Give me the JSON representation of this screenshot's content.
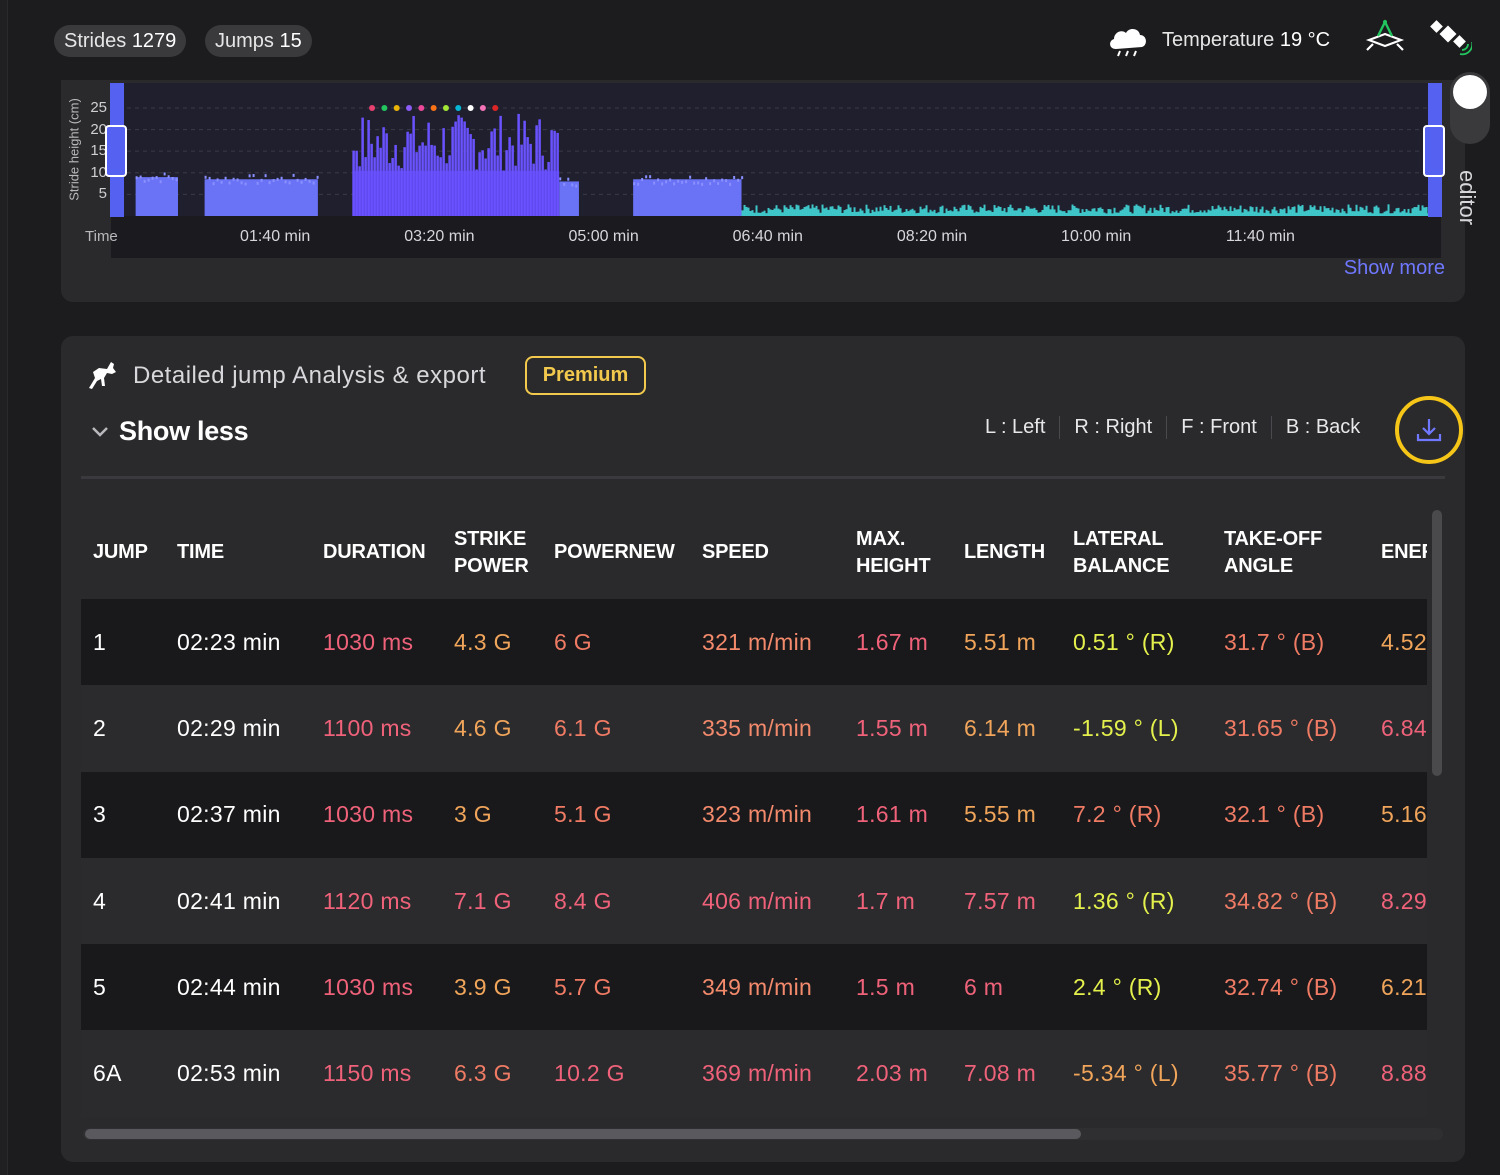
{
  "stats": {
    "strides_label": "Strides",
    "strides_value": "1279",
    "jumps_label": "Jumps",
    "jumps_value": "15",
    "temperature_label": "Temperature",
    "temperature_value": "19 °C"
  },
  "icons": {
    "weather": "cloud-icon",
    "arena": "arena-icon",
    "satellite": "satellite-icon",
    "horse": "horse-jump-icon",
    "chevron": "chevron-down-icon",
    "download": "download-icon"
  },
  "chart": {
    "ylabel": "Stride height (cm)",
    "yticks": [
      "25",
      "20",
      "15",
      "10",
      "5"
    ],
    "time_label": "Time",
    "xticks": [
      "01:40 min",
      "03:20 min",
      "05:00 min",
      "06:40 min",
      "08:20 min",
      "10:00 min",
      "11:40 min"
    ],
    "show_more": "Show more",
    "colors": {
      "stride": "#6a72f5",
      "jump": "#5b3ff0",
      "walk": "#3fc6c9",
      "background": "#1a1a1f"
    },
    "marker_colors": [
      "#e8416f",
      "#22c55e",
      "#eab308",
      "#8b5cf6",
      "#ec4899",
      "#f97316",
      "#a3e635",
      "#06b6d4",
      "#ffffff",
      "#f472b6",
      "#dc2626"
    ]
  },
  "chart_data": {
    "type": "area",
    "title": "",
    "xlabel": "Time",
    "ylabel": "Stride height (cm)",
    "ylim": [
      0,
      28
    ],
    "xlim_min": [
      0,
      13.5
    ],
    "x_tick_labels": [
      "01:40 min",
      "03:20 min",
      "05:00 min",
      "06:40 min",
      "08:20 min",
      "10:00 min",
      "11:40 min"
    ],
    "segments": [
      {
        "name": "stride",
        "x_start_min": 0.25,
        "x_end_min": 0.68,
        "height_cm": 9
      },
      {
        "name": "stride",
        "x_start_min": 0.95,
        "x_end_min": 2.1,
        "height_cm": 8.5
      },
      {
        "name": "jump",
        "x_start_min": 2.45,
        "x_end_min": 4.55,
        "height_cm": 19
      },
      {
        "name": "stride",
        "x_start_min": 4.55,
        "x_end_min": 4.75,
        "height_cm": 8
      },
      {
        "name": "stride",
        "x_start_min": 5.3,
        "x_end_min": 6.4,
        "height_cm": 8.5
      },
      {
        "name": "walk",
        "x_start_min": 6.4,
        "x_end_min": 13.45,
        "height_cm": 1.5
      }
    ],
    "grid": true,
    "legend": "none"
  },
  "editor": {
    "label": "editor"
  },
  "analysis": {
    "title": "Detailed jump Analysis & export",
    "badge": "Premium",
    "toggle_label": "Show less",
    "legend": [
      "L : Left",
      "R : Right",
      "F : Front",
      "B : Back"
    ],
    "columns": [
      "JUMP",
      "TIME",
      "DURATION",
      "STRIKE POWER",
      "POWERNEW",
      "SPEED",
      "MAX. HEIGHT",
      "LENGTH",
      "LATERAL BALANCE",
      "TAKE-OFF ANGLE",
      "ENEF"
    ],
    "rows": [
      {
        "jump": "1",
        "time": "02:23 min",
        "duration": "1030 ms",
        "strike": "4.3 G",
        "powernew": "6 G",
        "speed": "321 m/min",
        "height": "1.67 m",
        "length": "5.51 m",
        "balance": "0.51 ° (R)",
        "angle": "31.7 ° (B)",
        "energy": "4.52"
      },
      {
        "jump": "2",
        "time": "02:29 min",
        "duration": "1100 ms",
        "strike": "4.6 G",
        "powernew": "6.1 G",
        "speed": "335 m/min",
        "height": "1.55 m",
        "length": "6.14 m",
        "balance": "-1.59 ° (L)",
        "angle": "31.65 ° (B)",
        "energy": "6.84"
      },
      {
        "jump": "3",
        "time": "02:37 min",
        "duration": "1030 ms",
        "strike": "3 G",
        "powernew": "5.1 G",
        "speed": "323 m/min",
        "height": "1.61 m",
        "length": "5.55 m",
        "balance": "7.2 ° (R)",
        "angle": "32.1 ° (B)",
        "energy": "5.16"
      },
      {
        "jump": "4",
        "time": "02:41 min",
        "duration": "1120 ms",
        "strike": "7.1 G",
        "powernew": "8.4 G",
        "speed": "406 m/min",
        "height": "1.7 m",
        "length": "7.57 m",
        "balance": "1.36 ° (R)",
        "angle": "34.82 ° (B)",
        "energy": "8.29"
      },
      {
        "jump": "5",
        "time": "02:44 min",
        "duration": "1030 ms",
        "strike": "3.9 G",
        "powernew": "5.7 G",
        "speed": "349 m/min",
        "height": "1.5 m",
        "length": "6 m",
        "balance": "2.4 ° (R)",
        "angle": "32.74 ° (B)",
        "energy": "6.21"
      },
      {
        "jump": "6A",
        "time": "02:53 min",
        "duration": "1150 ms",
        "strike": "6.3 G",
        "powernew": "10.2 G",
        "speed": "369 m/min",
        "height": "2.03 m",
        "length": "7.08 m",
        "balance": "-5.34 ° (L)",
        "angle": "35.77 ° (B)",
        "energy": "8.88"
      }
    ],
    "cell_colors": [
      {
        "duration": "c-red",
        "strike": "c-orange",
        "powernew": "c-coral",
        "speed": "c-salmon",
        "height": "c-red",
        "length": "c-orange",
        "balance": "c-yellow",
        "angle": "c-coral",
        "energy": "c-orange"
      },
      {
        "duration": "c-red",
        "strike": "c-orange",
        "powernew": "c-coral",
        "speed": "c-salmon",
        "height": "c-red",
        "length": "c-orange",
        "balance": "c-yellow",
        "angle": "c-coral",
        "energy": "c-red"
      },
      {
        "duration": "c-red",
        "strike": "c-orange",
        "powernew": "c-coral",
        "speed": "c-salmon",
        "height": "c-red",
        "length": "c-orange",
        "balance": "c-coral",
        "angle": "c-coral",
        "energy": "c-orange"
      },
      {
        "duration": "c-red",
        "strike": "c-red",
        "powernew": "c-red",
        "speed": "c-red",
        "height": "c-red",
        "length": "c-red",
        "balance": "c-yellow",
        "angle": "c-coral",
        "energy": "c-red"
      },
      {
        "duration": "c-red",
        "strike": "c-orange",
        "powernew": "c-coral",
        "speed": "c-salmon",
        "height": "c-red",
        "length": "c-red",
        "balance": "c-yellow",
        "angle": "c-coral",
        "energy": "c-orange"
      },
      {
        "duration": "c-red",
        "strike": "c-coral",
        "powernew": "c-red",
        "speed": "c-red",
        "height": "c-red",
        "length": "c-red",
        "balance": "c-orange",
        "angle": "c-coral",
        "energy": "c-red"
      }
    ]
  }
}
